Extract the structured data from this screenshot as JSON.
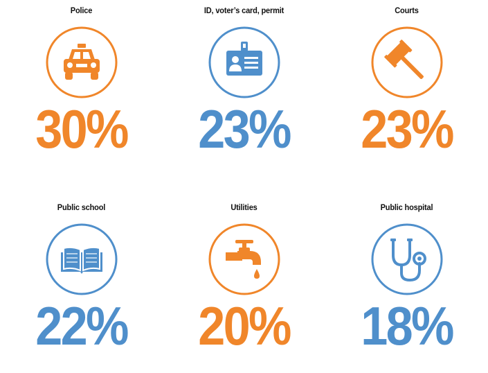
{
  "colors": {
    "orange": "#F0862A",
    "blue": "#4F8FCB"
  },
  "items": [
    {
      "label": "Police",
      "value": "30%",
      "icon": "police-car-icon",
      "color": "#F0862A"
    },
    {
      "label": "ID, voter’s card, permit",
      "value": "23%",
      "icon": "id-card-icon",
      "color": "#4F8FCB"
    },
    {
      "label": "Courts",
      "value": "23%",
      "icon": "gavel-icon",
      "color": "#F0862A"
    },
    {
      "label": "Public school",
      "value": "22%",
      "icon": "open-book-icon",
      "color": "#4F8FCB"
    },
    {
      "label": "Utilities",
      "value": "20%",
      "icon": "water-tap-icon",
      "color": "#F0862A"
    },
    {
      "label": "Public hospital",
      "value": "18%",
      "icon": "stethoscope-icon",
      "color": "#4F8FCB"
    }
  ]
}
